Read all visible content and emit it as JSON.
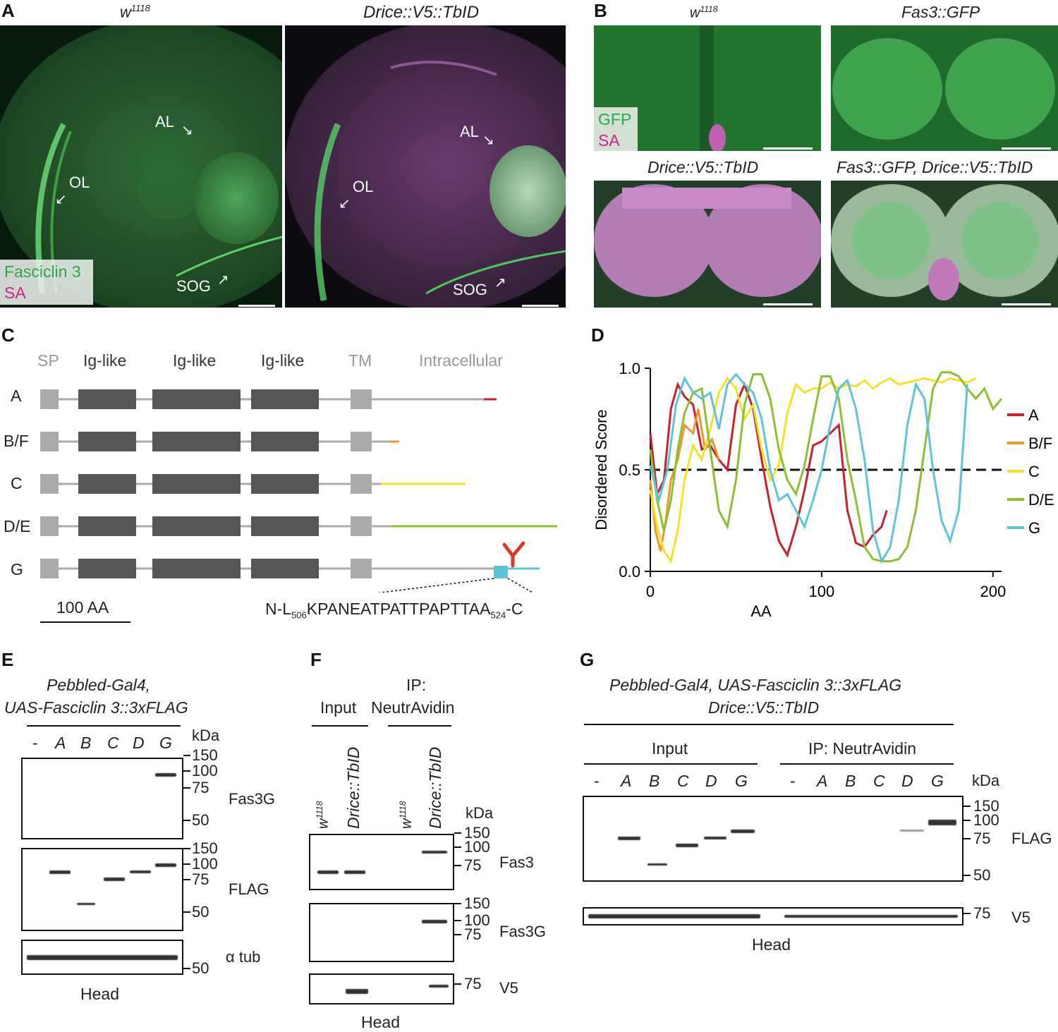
{
  "panels": {
    "A": {
      "letter": "A",
      "left_title": "w1118",
      "right_title": "Drice::V5::TbID",
      "labels": {
        "AL": "AL",
        "OL": "OL",
        "SOG": "SOG"
      },
      "legend": {
        "green": "Fasciclin 3",
        "magenta": "SA"
      }
    },
    "B": {
      "letter": "B",
      "titles": [
        "w1118",
        "Fas3::GFP",
        "Drice::V5::TbID",
        "Fas3::GFP, Drice::V5::TbID"
      ],
      "legend": {
        "green": "GFP",
        "magenta": "SA"
      }
    },
    "C": {
      "letter": "C",
      "domains": [
        "SP",
        "Ig-like",
        "Ig-like",
        "Ig-like",
        "TM",
        "Intracellular"
      ],
      "isoforms": [
        {
          "name": "A",
          "color": "#c8202f"
        },
        {
          "name": "B/F",
          "color": "#f0962a"
        },
        {
          "name": "C",
          "color": "#f5e12a"
        },
        {
          "name": "D/E",
          "color": "#8bc034"
        },
        {
          "name": "G",
          "color": "#5ec4d8"
        }
      ],
      "scale_label": "100 AA",
      "sequence": {
        "prefix": "N-L",
        "start": "506",
        "middle": "KPANEATPATTPAPTTAA",
        "end": "524",
        "suffix": "-C"
      }
    },
    "D": {
      "letter": "D"
    },
    "E": {
      "letter": "E",
      "header_line1": "Pebbled-Gal4,",
      "header_line2": "UAS-Fasciclin 3::3xFLAG",
      "lanes": [
        "-",
        "A",
        "B",
        "C",
        "D",
        "G"
      ],
      "kda": "kDa",
      "blot1": {
        "label": "Fas3G",
        "markers": [
          "150",
          "100",
          "75",
          "50"
        ]
      },
      "blot2": {
        "label": "FLAG",
        "markers": [
          "150",
          "100",
          "75",
          "50"
        ]
      },
      "blot3": {
        "label": "α tub",
        "markers": [
          "50"
        ]
      },
      "footer": "Head"
    },
    "F": {
      "letter": "F",
      "ip_title": "IP:",
      "input": "Input",
      "ip": "NeutrAvidin",
      "lanes": [
        "w1118",
        "Drice::TbID",
        "w1118",
        "Drice::TbID"
      ],
      "kda": "kDa",
      "blot1": {
        "label": "Fas3",
        "markers": [
          "150",
          "100",
          "75"
        ]
      },
      "blot2": {
        "label": "Fas3G",
        "markers": [
          "150",
          "100",
          "75"
        ]
      },
      "blot3": {
        "label": "V5",
        "markers": [
          "75"
        ]
      },
      "footer": "Head"
    },
    "G": {
      "letter": "G",
      "header_line1": "Pebbled-Gal4, UAS-Fasciclin 3::3xFLAG",
      "header_line2": "Drice::V5::TbID",
      "input": "Input",
      "ip": "IP: NeutrAvidin",
      "lanes": [
        "-",
        "A",
        "B",
        "C",
        "D",
        "G",
        "-",
        "A",
        "B",
        "C",
        "D",
        "G"
      ],
      "kda": "kDa",
      "blot1": {
        "label": "FLAG",
        "markers": [
          "150",
          "100",
          "75",
          "50"
        ]
      },
      "blot2": {
        "label": "V5",
        "markers": [
          "75"
        ]
      },
      "footer": "Head"
    }
  },
  "chart_data": {
    "type": "line",
    "xlabel": "AA",
    "ylabel": "Disordered Score",
    "xlim": [
      0,
      205
    ],
    "ylim": [
      0,
      1.0
    ],
    "xticks": [
      "0",
      "100",
      "200"
    ],
    "yticks": [
      "0.0",
      "0.5",
      "1.0"
    ],
    "threshold": 0.5,
    "legend_placement": "right",
    "series": [
      {
        "name": "A",
        "color": "#c8202f",
        "x": [
          0,
          4,
          8,
          12,
          16,
          20,
          25,
          30,
          35,
          40,
          45,
          50,
          55,
          60,
          65,
          70,
          75,
          80,
          85,
          90,
          95,
          100,
          105,
          110,
          115,
          120,
          125,
          130,
          135,
          138
        ],
        "y": [
          0.68,
          0.38,
          0.45,
          0.8,
          0.92,
          0.86,
          0.82,
          0.6,
          0.62,
          0.55,
          0.5,
          0.82,
          0.92,
          0.8,
          0.55,
          0.32,
          0.15,
          0.08,
          0.22,
          0.4,
          0.62,
          0.64,
          0.68,
          0.72,
          0.3,
          0.14,
          0.12,
          0.18,
          0.22,
          0.3
        ]
      },
      {
        "name": "B/F",
        "color": "#f0962a",
        "x": [
          0,
          3,
          6,
          9,
          12,
          16,
          20,
          25,
          28,
          32,
          36,
          40
        ],
        "y": [
          0.45,
          0.2,
          0.1,
          0.25,
          0.45,
          0.55,
          0.72,
          0.68,
          0.8,
          0.6,
          0.65,
          0.55
        ]
      },
      {
        "name": "C",
        "color": "#f5e12a",
        "x": [
          0,
          4,
          8,
          12,
          16,
          20,
          25,
          30,
          35,
          40,
          45,
          50,
          55,
          60,
          65,
          70,
          75,
          80,
          85,
          90,
          95,
          100,
          105,
          110,
          115,
          120,
          125,
          130,
          135,
          140,
          145,
          150,
          155,
          160,
          165,
          170,
          175,
          180,
          185,
          190
        ],
        "y": [
          0.4,
          0.22,
          0.1,
          0.05,
          0.2,
          0.45,
          0.62,
          0.55,
          0.7,
          0.88,
          0.95,
          0.9,
          0.75,
          0.82,
          0.6,
          0.45,
          0.52,
          0.78,
          0.92,
          0.88,
          0.9,
          0.9,
          0.93,
          0.9,
          0.92,
          0.91,
          0.94,
          0.9,
          0.93,
          0.95,
          0.92,
          0.93,
          0.94,
          0.95,
          0.94,
          0.93,
          0.95,
          0.94,
          0.93,
          0.95
        ]
      },
      {
        "name": "D/E",
        "color": "#8bc034",
        "x": [
          0,
          4,
          8,
          12,
          16,
          20,
          25,
          30,
          35,
          40,
          45,
          50,
          55,
          60,
          65,
          70,
          75,
          80,
          85,
          90,
          95,
          100,
          105,
          110,
          115,
          120,
          125,
          130,
          135,
          140,
          145,
          150,
          155,
          160,
          165,
          170,
          175,
          180,
          185,
          190,
          195,
          200,
          205
        ],
        "y": [
          0.6,
          0.35,
          0.2,
          0.35,
          0.6,
          0.78,
          0.88,
          0.9,
          0.6,
          0.3,
          0.22,
          0.45,
          0.82,
          0.97,
          0.97,
          0.85,
          0.6,
          0.45,
          0.38,
          0.52,
          0.75,
          0.96,
          0.96,
          0.85,
          0.55,
          0.35,
          0.12,
          0.06,
          0.05,
          0.05,
          0.06,
          0.12,
          0.3,
          0.6,
          0.9,
          0.98,
          0.98,
          0.96,
          0.9,
          0.85,
          0.9,
          0.8,
          0.85
        ]
      },
      {
        "name": "G",
        "color": "#5ec4d8",
        "x": [
          0,
          5,
          10,
          15,
          20,
          25,
          30,
          35,
          40,
          45,
          50,
          55,
          60,
          65,
          70,
          75,
          80,
          85,
          90,
          95,
          100,
          105,
          110,
          115,
          120,
          125,
          130,
          135,
          140,
          145,
          150,
          155,
          160,
          165,
          170,
          175,
          180,
          185
        ],
        "y": [
          0.52,
          0.35,
          0.5,
          0.82,
          0.95,
          0.88,
          0.85,
          0.88,
          0.7,
          0.92,
          0.97,
          0.92,
          0.88,
          0.75,
          0.5,
          0.35,
          0.38,
          0.3,
          0.22,
          0.35,
          0.5,
          0.72,
          0.9,
          0.94,
          0.8,
          0.55,
          0.2,
          0.05,
          0.12,
          0.35,
          0.72,
          0.92,
          0.85,
          0.5,
          0.25,
          0.15,
          0.3,
          0.92
        ]
      }
    ]
  }
}
